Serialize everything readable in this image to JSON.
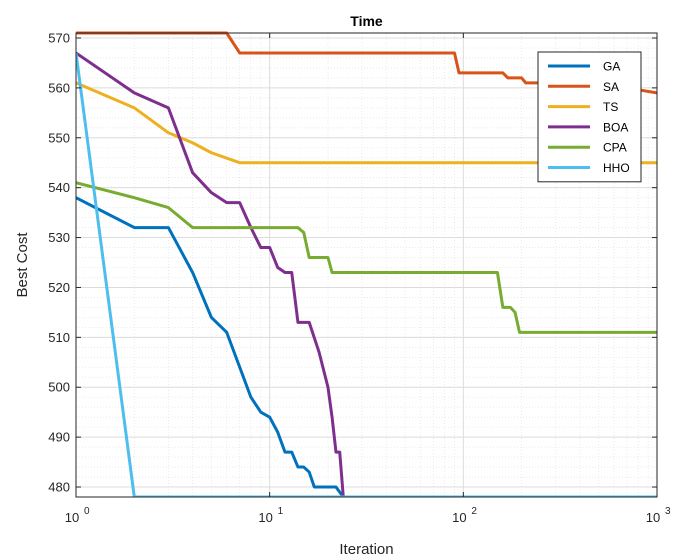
{
  "chart_data": {
    "type": "line",
    "title": "Time",
    "xlabel": "Iteration",
    "ylabel": "Best Cost",
    "xscale": "log",
    "xlim": [
      1,
      1000
    ],
    "ylim": [
      478,
      571
    ],
    "x_ticks": [
      {
        "value": 1,
        "label": "10",
        "exp": "0"
      },
      {
        "value": 10,
        "label": "10",
        "exp": "1"
      },
      {
        "value": 100,
        "label": "10",
        "exp": "2"
      },
      {
        "value": 1000,
        "label": "10",
        "exp": "3"
      }
    ],
    "y_ticks": [
      480,
      490,
      500,
      510,
      520,
      530,
      540,
      550,
      560,
      570
    ],
    "grid": true,
    "minor_grid": true,
    "legend_position": "top-right",
    "series": [
      {
        "name": "GA",
        "color": "#0072BD",
        "points": [
          [
            1,
            538
          ],
          [
            2,
            532
          ],
          [
            3,
            532
          ],
          [
            4,
            523
          ],
          [
            5,
            514
          ],
          [
            6,
            511
          ],
          [
            8,
            498
          ],
          [
            9,
            495
          ],
          [
            10,
            494
          ],
          [
            11,
            491
          ],
          [
            12,
            487
          ],
          [
            13,
            487
          ],
          [
            14,
            484
          ],
          [
            15,
            484
          ],
          [
            16,
            483
          ],
          [
            17,
            480
          ],
          [
            22,
            480
          ],
          [
            24,
            478
          ],
          [
            1000,
            478
          ]
        ]
      },
      {
        "name": "SA",
        "color": "#D95319",
        "points": [
          [
            1,
            571
          ],
          [
            6,
            571
          ],
          [
            7,
            567
          ],
          [
            90,
            567
          ],
          [
            95,
            563
          ],
          [
            160,
            563
          ],
          [
            170,
            562
          ],
          [
            200,
            562
          ],
          [
            210,
            561
          ],
          [
            300,
            561
          ],
          [
            400,
            560
          ],
          [
            700,
            560
          ],
          [
            1000,
            559
          ]
        ]
      },
      {
        "name": "TS",
        "color": "#EDB120",
        "points": [
          [
            1,
            561
          ],
          [
            2,
            556
          ],
          [
            3,
            551
          ],
          [
            4,
            549
          ],
          [
            5,
            547
          ],
          [
            7,
            545
          ],
          [
            1000,
            545
          ]
        ]
      },
      {
        "name": "BOA",
        "color": "#7E2F8E",
        "points": [
          [
            1,
            567
          ],
          [
            2,
            559
          ],
          [
            3,
            556
          ],
          [
            4,
            543
          ],
          [
            5,
            539
          ],
          [
            6,
            537
          ],
          [
            7,
            537
          ],
          [
            8,
            532
          ],
          [
            9,
            528
          ],
          [
            10,
            528
          ],
          [
            11,
            524
          ],
          [
            12,
            523
          ],
          [
            13,
            523
          ],
          [
            14,
            513
          ],
          [
            15,
            513
          ],
          [
            16,
            513
          ],
          [
            18,
            507
          ],
          [
            20,
            500
          ],
          [
            21,
            494
          ],
          [
            22,
            487
          ],
          [
            23,
            487
          ],
          [
            24,
            478
          ]
        ]
      },
      {
        "name": "CPA",
        "color": "#77AC30",
        "points": [
          [
            1,
            541
          ],
          [
            2,
            538
          ],
          [
            3,
            536
          ],
          [
            4,
            532
          ],
          [
            14,
            532
          ],
          [
            15,
            531
          ],
          [
            16,
            526
          ],
          [
            20,
            526
          ],
          [
            21,
            523
          ],
          [
            150,
            523
          ],
          [
            160,
            516
          ],
          [
            175,
            516
          ],
          [
            185,
            515
          ],
          [
            195,
            511
          ],
          [
            1000,
            511
          ]
        ]
      },
      {
        "name": "HHO",
        "color": "#4DBEEE",
        "points": [
          [
            1,
            567
          ],
          [
            2,
            478
          ],
          [
            1000,
            478
          ]
        ]
      }
    ]
  }
}
